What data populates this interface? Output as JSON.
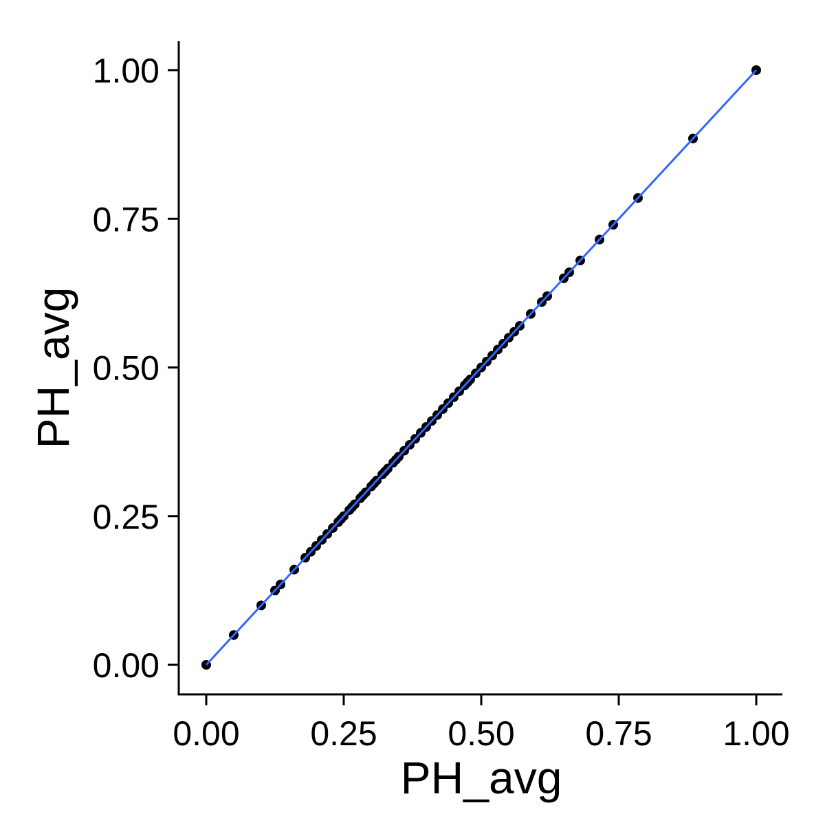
{
  "chart_data": {
    "type": "scatter",
    "title": "",
    "xlabel": "PH_avg",
    "ylabel": "PH_avg",
    "xlim": [
      0,
      1
    ],
    "ylim": [
      0,
      1
    ],
    "x_ticks": [
      "0.00",
      "0.25",
      "0.50",
      "0.75",
      "1.00"
    ],
    "y_ticks": [
      "0.00",
      "0.25",
      "0.50",
      "0.75",
      "1.00"
    ],
    "x_tick_values": [
      0,
      0.25,
      0.5,
      0.75,
      1.0
    ],
    "y_tick_values": [
      0,
      0.25,
      0.5,
      0.75,
      1.0
    ],
    "grid": false,
    "legend": "none",
    "point_color": "#000000",
    "fit_line_color": "#3366FF",
    "fit_line": {
      "slope": 1,
      "intercept": 0
    },
    "x": [
      0,
      0.05,
      0.1,
      0.125,
      0.135,
      0.16,
      0.18,
      0.19,
      0.2,
      0.21,
      0.22,
      0.23,
      0.24,
      0.245,
      0.25,
      0.26,
      0.265,
      0.27,
      0.28,
      0.285,
      0.29,
      0.3,
      0.305,
      0.31,
      0.32,
      0.325,
      0.33,
      0.34,
      0.345,
      0.35,
      0.36,
      0.37,
      0.38,
      0.39,
      0.4,
      0.41,
      0.42,
      0.43,
      0.44,
      0.45,
      0.46,
      0.47,
      0.475,
      0.48,
      0.49,
      0.5,
      0.51,
      0.52,
      0.53,
      0.54,
      0.55,
      0.56,
      0.57,
      0.59,
      0.61,
      0.62,
      0.65,
      0.66,
      0.68,
      0.715,
      0.74,
      0.785,
      0.885,
      1.0
    ],
    "y": [
      0,
      0.05,
      0.1,
      0.125,
      0.135,
      0.16,
      0.18,
      0.19,
      0.2,
      0.21,
      0.22,
      0.23,
      0.24,
      0.245,
      0.25,
      0.26,
      0.265,
      0.27,
      0.28,
      0.285,
      0.29,
      0.3,
      0.305,
      0.31,
      0.32,
      0.325,
      0.33,
      0.34,
      0.345,
      0.35,
      0.36,
      0.37,
      0.38,
      0.39,
      0.4,
      0.41,
      0.42,
      0.43,
      0.44,
      0.45,
      0.46,
      0.47,
      0.475,
      0.48,
      0.49,
      0.5,
      0.51,
      0.52,
      0.53,
      0.54,
      0.55,
      0.56,
      0.57,
      0.59,
      0.61,
      0.62,
      0.65,
      0.66,
      0.68,
      0.715,
      0.74,
      0.785,
      0.885,
      1.0
    ]
  }
}
